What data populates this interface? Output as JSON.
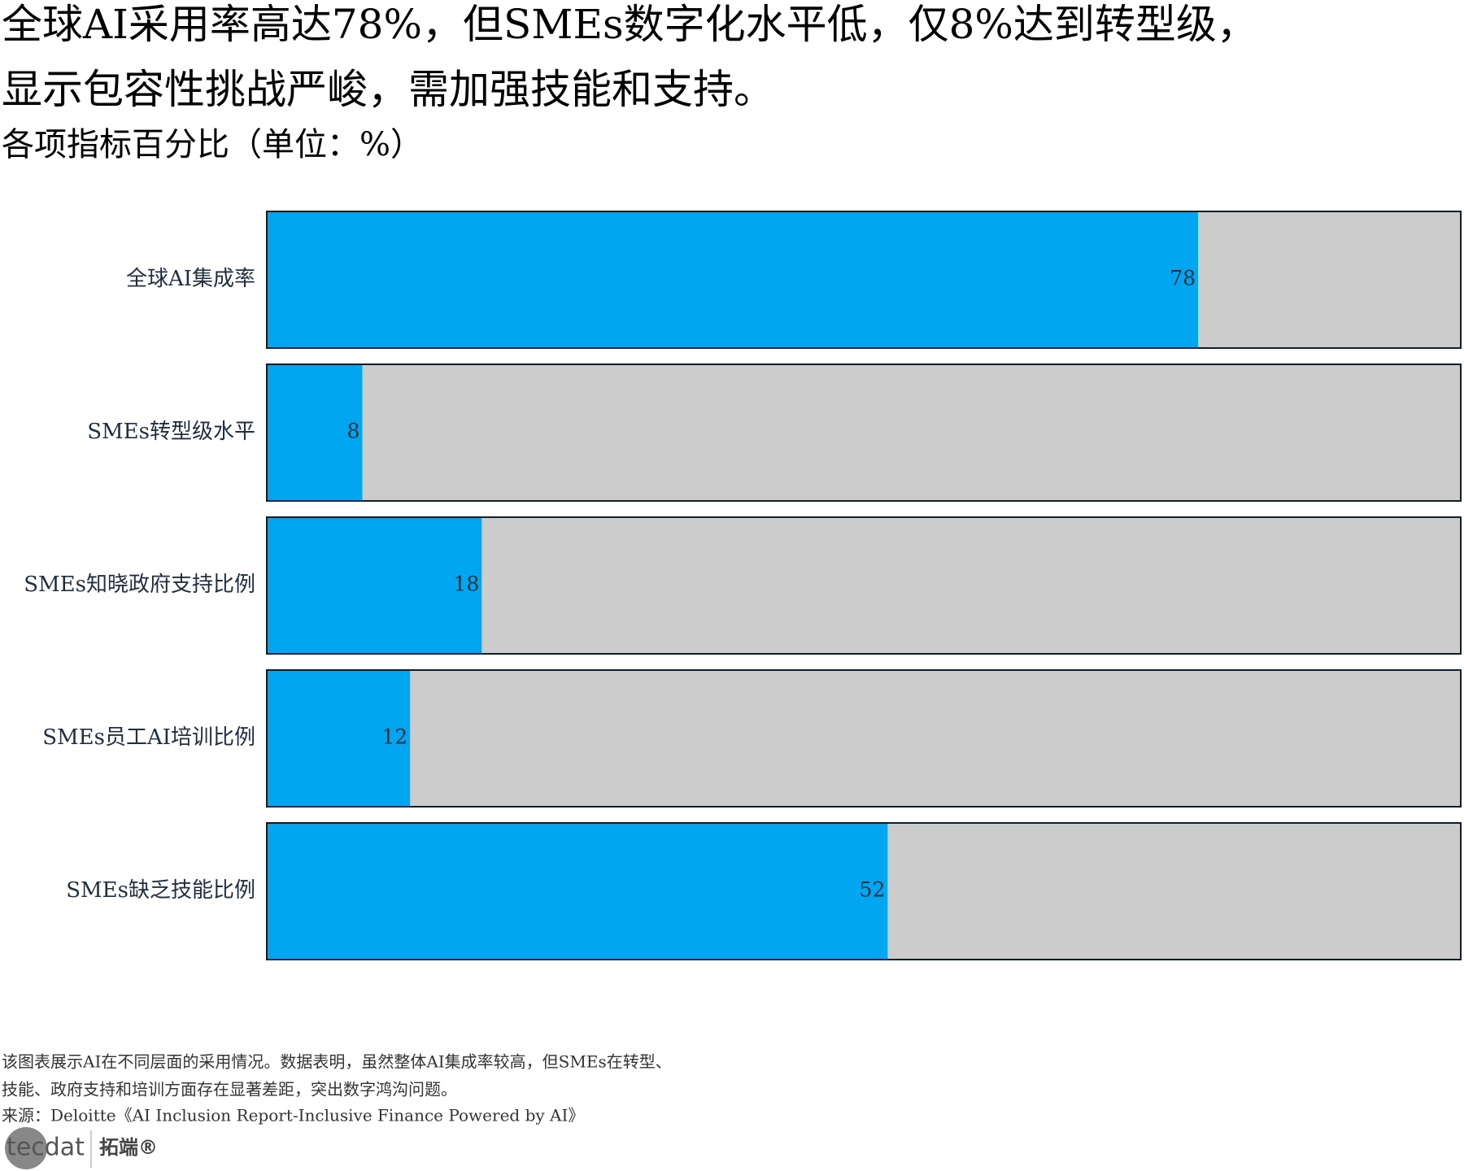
{
  "chart_data": {
    "type": "bar",
    "orientation": "horizontal",
    "title": [
      "全球AI采用率高达78%，但SMEs数字化水平低，仅8%达到转型级，",
      "显示包容性挑战严峻，需加强技能和支持。"
    ],
    "subtitle": "各项指标百分比（单位：%）",
    "categories": [
      "全球AI集成率",
      "SMEs转型级水平",
      "SMEs知晓政府支持比例",
      "SMEs员工AI培训比例",
      "SMEs缺乏技能比例"
    ],
    "values": [
      78,
      8,
      18,
      12,
      52
    ],
    "color": "#00a6ef",
    "track_color": "#cccccc",
    "xlim": [
      0,
      100
    ],
    "notes": [
      "该图表展示AI在不同层面的采用情况。数据表明，虽然整体AI集成率较高，但SMEs在转型、",
      "技能、政府支持和培训方面存在显著差距，突出数字鸿沟问题。"
    ],
    "source": "来源：Deloitte《AI Inclusion Report-Inclusive Finance Powered by AI》"
  },
  "logo": {
    "mark": "tecdat",
    "name": "拓端®"
  }
}
